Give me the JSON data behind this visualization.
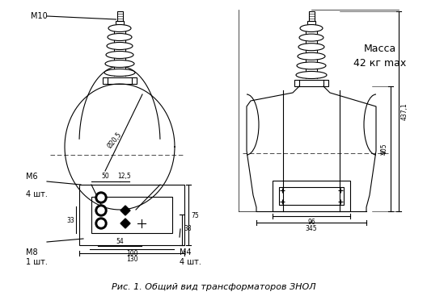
{
  "title": "Рис. 1. Общий вид трансформаторов ЗНОЛ",
  "bg_color": "#ffffff",
  "line_color": "#000000",
  "title_fontsize": 9,
  "annotation_fontsize": 7,
  "massa_line1": "Масса",
  "massa_line2": "42 кг max",
  "m10_label": "М10",
  "m6_label": "М6",
  "m6_sub": "4 шт.",
  "m8_label": "М8",
  "m8_sub": "1 шт.",
  "m4_label": "М4",
  "m4_sub": "4 шт.",
  "dim_437": "437,1",
  "dim_405": "405",
  "dim_345": "345",
  "dim_96": "96",
  "dim_130": "130",
  "dim_100": "100",
  "dim_54": "54",
  "dim_50": "50",
  "dim_125": "12,5",
  "dim_75": "75",
  "dim_38": "38",
  "dim_33": "33",
  "dim_205": "Ø20,5"
}
